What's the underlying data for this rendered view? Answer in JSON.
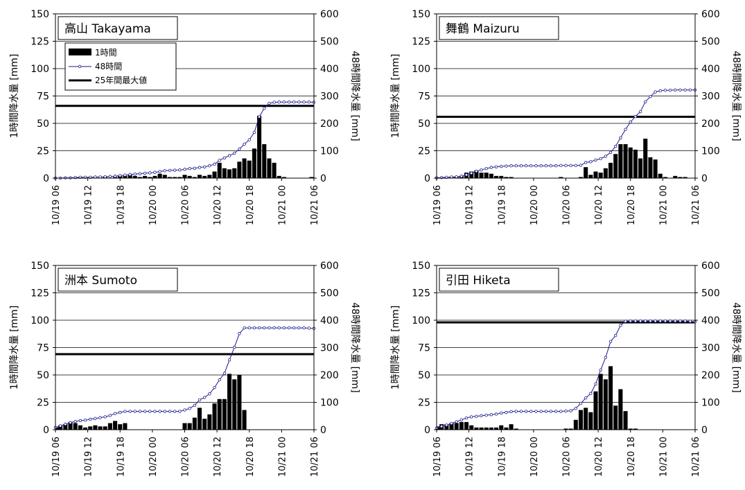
{
  "chart_data": [
    {
      "type": "bar",
      "title": "高山 Takayama",
      "ylabel": "1時間降水量 [mm]",
      "y2label": "48時間降水量 [mm]",
      "ylim": [
        0,
        150
      ],
      "y2lim": [
        0,
        600
      ],
      "yticks": [
        "0",
        "25",
        "50",
        "75",
        "100",
        "125",
        "150"
      ],
      "y2ticks": [
        "0",
        "100",
        "200",
        "300",
        "400",
        "500",
        "600"
      ],
      "xticks": [
        "10/19 06",
        "10/19 12",
        "10/19 18",
        "10/20 00",
        "10/20 06",
        "10/20 12",
        "10/20 18",
        "10/21 00",
        "10/21 06"
      ],
      "x_hours_start": "10/19 06",
      "legend": {
        "position": "top-left",
        "entries": [
          "1時間",
          "48時間",
          "25年間最大値"
        ]
      },
      "max25": 66,
      "hourly": [
        0,
        0,
        0,
        0,
        0,
        1,
        0,
        0,
        0,
        0,
        1,
        0,
        1,
        2,
        2,
        3,
        2,
        1,
        2,
        1,
        2,
        4,
        3,
        1,
        1,
        1,
        3,
        2,
        1,
        3,
        2,
        3,
        6,
        14,
        9,
        8,
        9,
        15,
        18,
        16,
        27,
        57,
        31,
        18,
        14,
        2,
        1,
        0,
        0,
        0,
        0,
        0,
        1
      ],
      "series48": [
        0,
        0,
        1,
        1,
        2,
        3,
        3,
        3,
        4,
        4,
        5,
        6,
        7,
        9,
        11,
        13,
        15,
        16,
        18,
        19,
        21,
        24,
        27,
        28,
        29,
        30,
        32,
        35,
        36,
        39,
        41,
        45,
        51,
        65,
        74,
        82,
        91,
        106,
        124,
        140,
        167,
        224,
        255,
        273,
        277,
        278,
        278,
        278,
        278,
        278,
        278,
        278,
        277
      ]
    },
    {
      "type": "bar",
      "title": "舞鶴 Maizuru",
      "ylabel": "1時間降水量 [mm]",
      "y2label": "48時間降水量 [mm]",
      "ylim": [
        0,
        150
      ],
      "y2lim": [
        0,
        600
      ],
      "yticks": [
        "0",
        "25",
        "50",
        "75",
        "100",
        "125",
        "150"
      ],
      "y2ticks": [
        "0",
        "100",
        "200",
        "300",
        "400",
        "500",
        "600"
      ],
      "xticks": [
        "10/19 06",
        "10/19 12",
        "10/19 18",
        "10/20 00",
        "10/20 06",
        "10/20 12",
        "10/20 18",
        "10/21 00",
        "10/21 06"
      ],
      "x_hours_start": "10/19 06",
      "max25": 56,
      "hourly": [
        0,
        0,
        0,
        1,
        1,
        2,
        5,
        6,
        7,
        5,
        5,
        4,
        2,
        2,
        1,
        1,
        0,
        0,
        0,
        0,
        0,
        0,
        0,
        0,
        0,
        1,
        0,
        0,
        0,
        1,
        10,
        3,
        6,
        5,
        9,
        14,
        22,
        31,
        31,
        28,
        26,
        18,
        36,
        19,
        17,
        4,
        1,
        0,
        2,
        1,
        1,
        0,
        0
      ],
      "series48": [
        1,
        2,
        3,
        4,
        5,
        7,
        12,
        18,
        25,
        30,
        35,
        39,
        41,
        43,
        44,
        45,
        45,
        45,
        45,
        45,
        45,
        45,
        45,
        45,
        45,
        46,
        46,
        46,
        46,
        47,
        57,
        60,
        66,
        71,
        80,
        94,
        116,
        147,
        178,
        205,
        225,
        243,
        279,
        298,
        315,
        319,
        321,
        321,
        322,
        322,
        322,
        322,
        322
      ]
    },
    {
      "type": "bar",
      "title": "洲本 Sumoto",
      "ylabel": "1時間降水量 [mm]",
      "y2label": "48時間降水量 [mm]",
      "ylim": [
        0,
        150
      ],
      "y2lim": [
        0,
        600
      ],
      "yticks": [
        "0",
        "25",
        "50",
        "75",
        "100",
        "125",
        "150"
      ],
      "y2ticks": [
        "0",
        "100",
        "200",
        "300",
        "400",
        "500",
        "600"
      ],
      "xticks": [
        "10/19 06",
        "10/19 12",
        "10/19 18",
        "10/20 00",
        "10/20 06",
        "10/20 12",
        "10/20 18",
        "10/21 00",
        "10/21 06"
      ],
      "x_hours_start": "10/19 06",
      "max25": 69,
      "hourly": [
        2,
        4,
        5,
        7,
        6,
        4,
        2,
        3,
        4,
        3,
        3,
        6,
        8,
        5,
        6,
        0,
        0,
        0,
        0,
        0,
        0,
        0,
        0,
        0,
        0,
        0,
        6,
        6,
        11,
        20,
        10,
        14,
        24,
        28,
        28,
        51,
        46,
        50,
        18,
        0,
        0,
        0,
        0,
        0,
        0,
        0,
        0,
        0,
        0,
        0,
        0,
        0,
        0
      ],
      "series48": [
        8,
        14,
        20,
        26,
        30,
        33,
        35,
        38,
        41,
        44,
        47,
        52,
        59,
        63,
        67,
        67,
        67,
        67,
        67,
        67,
        67,
        67,
        67,
        67,
        67,
        67,
        72,
        78,
        89,
        109,
        118,
        131,
        154,
        182,
        206,
        255,
        301,
        351,
        372,
        372,
        372,
        372,
        372,
        372,
        372,
        372,
        372,
        372,
        372,
        372,
        372,
        371,
        370
      ]
    },
    {
      "type": "bar",
      "title": "引田 Hiketa",
      "ylabel": "1時間降水量 [mm]",
      "y2label": "48時間降水量 [mm]",
      "ylim": [
        0,
        150
      ],
      "y2lim": [
        0,
        600
      ],
      "yticks": [
        "0",
        "25",
        "50",
        "75",
        "100",
        "125",
        "150"
      ],
      "y2ticks": [
        "0",
        "100",
        "200",
        "300",
        "400",
        "500",
        "600"
      ],
      "xticks": [
        "10/19 06",
        "10/19 12",
        "10/19 18",
        "10/20 00",
        "10/20 06",
        "10/20 12",
        "10/20 18",
        "10/21 00",
        "10/21 06"
      ],
      "x_hours_start": "10/19 06",
      "max25": 98,
      "hourly": [
        3,
        5,
        5,
        6,
        6,
        7,
        7,
        4,
        2,
        2,
        2,
        2,
        2,
        4,
        2,
        5,
        1,
        0,
        0,
        0,
        0,
        0,
        0,
        0,
        0,
        0,
        1,
        1,
        9,
        18,
        20,
        16,
        35,
        51,
        46,
        58,
        22,
        37,
        17,
        1,
        1,
        0,
        0,
        0,
        0,
        0,
        0,
        0,
        0,
        0,
        0,
        0,
        0
      ],
      "series48": [
        6,
        12,
        17,
        23,
        29,
        36,
        43,
        47,
        49,
        51,
        53,
        55,
        57,
        61,
        63,
        66,
        67,
        67,
        67,
        67,
        67,
        67,
        67,
        67,
        67,
        67,
        68,
        69,
        78,
        96,
        116,
        132,
        167,
        218,
        264,
        322,
        344,
        381,
        396,
        397,
        397,
        397,
        397,
        397,
        397,
        397,
        397,
        397,
        397,
        397,
        397,
        396,
        394
      ]
    }
  ]
}
